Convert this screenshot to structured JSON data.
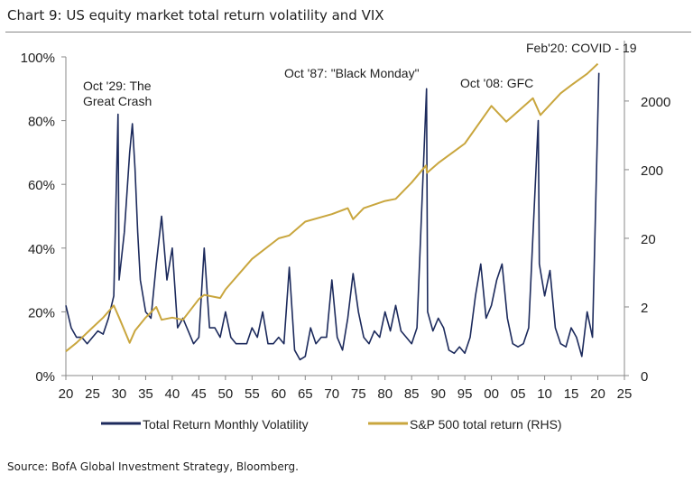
{
  "title": "Chart 9: US equity market total return volatility and VIX",
  "source": "Source: BofA Global Investment Strategy, Bloomberg.",
  "chart_data": {
    "type": "line",
    "title": "Chart 9: US equity market total return volatility and VIX",
    "xlim": [
      1920,
      2025
    ],
    "x_ticks": [
      1920,
      1925,
      1930,
      1935,
      1940,
      1945,
      1950,
      1955,
      1960,
      1965,
      1970,
      1975,
      1980,
      1985,
      1990,
      1995,
      2000,
      2005,
      2010,
      2015,
      2020,
      2025
    ],
    "x_tick_labels": [
      "20",
      "25",
      "30",
      "35",
      "40",
      "45",
      "50",
      "55",
      "60",
      "65",
      "70",
      "75",
      "80",
      "85",
      "90",
      "95",
      "00",
      "05",
      "10",
      "15",
      "20",
      "25"
    ],
    "ylim_left": [
      0,
      100
    ],
    "y_left_ticks": [
      0,
      20,
      40,
      60,
      80,
      100
    ],
    "y_left_tick_labels": [
      "0%",
      "20%",
      "40%",
      "60%",
      "80%",
      "100%"
    ],
    "ylim_right": [
      0.2,
      8800
    ],
    "y_right_scale": "log",
    "y_right_ticks": [
      0.2,
      2,
      20,
      200,
      2000
    ],
    "y_right_tick_labels": [
      "0",
      "2",
      "20",
      "200",
      "2000"
    ],
    "legend_position": "bottom",
    "grid": false,
    "series": [
      {
        "name": "Total Return Monthly Volatility",
        "axis": "left",
        "color": "#1c2a5c",
        "x": [
          1920,
          1921,
          1922,
          1923,
          1924,
          1925,
          1926,
          1927,
          1928,
          1929,
          1929.8,
          1930,
          1931,
          1932,
          1932.5,
          1933,
          1933.5,
          1934,
          1935,
          1936,
          1937,
          1938,
          1939,
          1940,
          1941,
          1942,
          1943,
          1944,
          1945,
          1946,
          1947,
          1948,
          1949,
          1950,
          1951,
          1952,
          1953,
          1954,
          1955,
          1956,
          1957,
          1958,
          1959,
          1960,
          1961,
          1962,
          1963,
          1964,
          1965,
          1966,
          1967,
          1968,
          1969,
          1970,
          1971,
          1972,
          1973,
          1974,
          1975,
          1976,
          1977,
          1978,
          1979,
          1980,
          1981,
          1982,
          1983,
          1984,
          1985,
          1986,
          1987.8,
          1988,
          1989,
          1990,
          1991,
          1992,
          1993,
          1994,
          1995,
          1996,
          1997,
          1998,
          1999,
          2000,
          2001,
          2002,
          2003,
          2004,
          2005,
          2006,
          2007,
          2008.8,
          2009,
          2010,
          2011,
          2012,
          2013,
          2014,
          2015,
          2016,
          2017,
          2018,
          2019,
          2020.2
        ],
        "values": [
          22,
          15,
          12,
          12,
          10,
          12,
          14,
          13,
          18,
          25,
          82,
          30,
          45,
          70,
          79,
          65,
          45,
          30,
          20,
          18,
          35,
          50,
          30,
          40,
          15,
          18,
          14,
          10,
          12,
          40,
          15,
          15,
          12,
          20,
          12,
          10,
          10,
          10,
          15,
          12,
          20,
          10,
          10,
          12,
          10,
          34,
          8,
          5,
          6,
          15,
          10,
          12,
          12,
          30,
          12,
          8,
          18,
          32,
          20,
          12,
          10,
          14,
          12,
          20,
          14,
          22,
          14,
          12,
          10,
          15,
          90,
          20,
          14,
          18,
          15,
          8,
          7,
          9,
          7,
          12,
          25,
          35,
          18,
          22,
          30,
          35,
          18,
          10,
          9,
          10,
          15,
          80,
          35,
          25,
          33,
          15,
          10,
          9,
          15,
          12,
          6,
          20,
          12,
          95
        ]
      },
      {
        "name": "S&P 500 total return (RHS)",
        "axis": "right",
        "color": "#c9a63e",
        "x": [
          1920,
          1922,
          1925,
          1927,
          1929,
          1930,
          1932,
          1933,
          1935,
          1937,
          1938,
          1940,
          1942,
          1945,
          1946,
          1949,
          1950,
          1955,
          1960,
          1962,
          1965,
          1970,
          1973,
          1974,
          1976,
          1980,
          1982,
          1985,
          1987.7,
          1987.9,
          1990,
          1995,
          2000,
          2002.8,
          2007.8,
          2009.2,
          2013,
          2015,
          2018,
          2020
        ],
        "values": [
          0.45,
          0.6,
          1.0,
          1.4,
          2.1,
          1.4,
          0.6,
          0.9,
          1.4,
          2.0,
          1.3,
          1.4,
          1.3,
          2.6,
          3.0,
          2.7,
          3.6,
          10,
          20,
          22,
          35,
          45,
          55,
          38,
          55,
          70,
          75,
          130,
          230,
          180,
          250,
          480,
          1700,
          1000,
          2200,
          1250,
          2600,
          3400,
          5000,
          7000
        ]
      }
    ],
    "annotations": [
      "Oct '29: The",
      "Great Crash",
      "Oct '87: \"Black Monday\"",
      "Oct '08: GFC",
      "Feb'20: COVID - 19"
    ]
  }
}
